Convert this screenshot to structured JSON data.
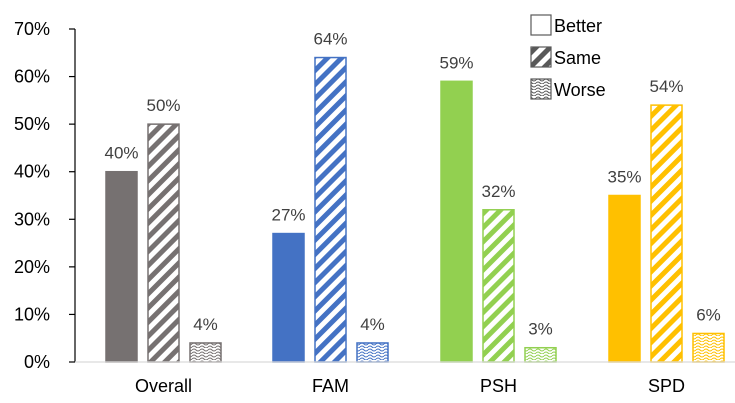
{
  "chart_data": {
    "type": "bar",
    "title": "",
    "xlabel": "",
    "ylabel": "",
    "categories": [
      "Overall",
      "FAM",
      "PSH",
      "SPD"
    ],
    "ylim": [
      0,
      70
    ],
    "yticks": [
      0,
      10,
      20,
      30,
      40,
      50,
      60,
      70
    ],
    "ytick_labels": [
      "0%",
      "10%",
      "20%",
      "30%",
      "40%",
      "50%",
      "60%",
      "70%"
    ],
    "grid": false,
    "legend_position": "top-right",
    "category_colors": [
      "#767171",
      "#4472C4",
      "#92D050",
      "#FFC000"
    ],
    "series": [
      {
        "name": "Better",
        "pattern": "solid",
        "values": [
          40,
          27,
          59,
          35
        ],
        "labels": [
          "40%",
          "27%",
          "59%",
          "35%"
        ]
      },
      {
        "name": "Same",
        "pattern": "diagonal-stripes",
        "values": [
          50,
          64,
          32,
          54
        ],
        "labels": [
          "50%",
          "64%",
          "32%",
          "54%"
        ]
      },
      {
        "name": "Worse",
        "pattern": "wavy",
        "values": [
          4,
          4,
          3,
          6
        ],
        "labels": [
          "4%",
          "4%",
          "3%",
          "6%"
        ]
      }
    ],
    "legend_color": "#595959"
  }
}
